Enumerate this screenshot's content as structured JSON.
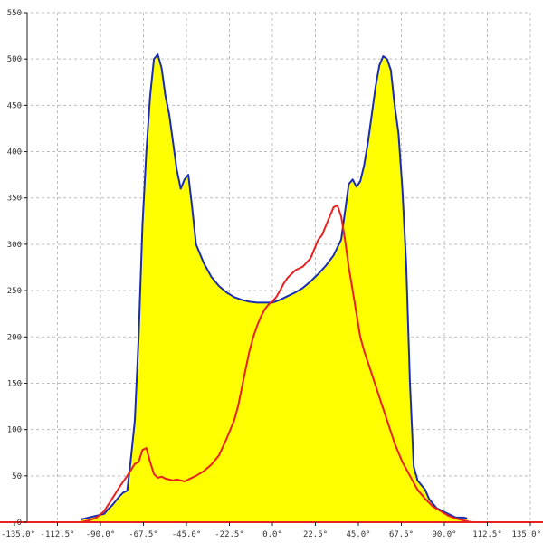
{
  "chart_data": {
    "type": "area",
    "title": "",
    "xlabel": "",
    "ylabel": "",
    "xlim": [
      -135,
      135
    ],
    "ylim": [
      0,
      550
    ],
    "grid": true,
    "legend": "none",
    "x_ticks": [
      {
        "value": -135,
        "label": "-135.0°"
      },
      {
        "value": -112.5,
        "label": "-112.5°"
      },
      {
        "value": -90,
        "label": "-90.0°"
      },
      {
        "value": -67.5,
        "label": "-67.5°"
      },
      {
        "value": -45,
        "label": "-45.0°"
      },
      {
        "value": -22.5,
        "label": "-22.5°"
      },
      {
        "value": 0,
        "label": "0.0°"
      },
      {
        "value": 22.5,
        "label": "22.5°"
      },
      {
        "value": 45,
        "label": "45.0°"
      },
      {
        "value": 67.5,
        "label": "67.5°"
      },
      {
        "value": 90,
        "label": "90.0°"
      },
      {
        "value": 112.5,
        "label": "112.5°"
      },
      {
        "value": 135,
        "label": "135.0°"
      }
    ],
    "y_ticks": [
      {
        "value": 0,
        "label": "0"
      },
      {
        "value": 50,
        "label": "50"
      },
      {
        "value": 100,
        "label": "100"
      },
      {
        "value": 150,
        "label": "150"
      },
      {
        "value": 200,
        "label": "200"
      },
      {
        "value": 250,
        "label": "250"
      },
      {
        "value": 300,
        "label": "300"
      },
      {
        "value": 350,
        "label": "350"
      },
      {
        "value": 400,
        "label": "400"
      },
      {
        "value": 450,
        "label": "450"
      },
      {
        "value": 500,
        "label": "500"
      },
      {
        "value": 550,
        "label": "550"
      }
    ],
    "series": [
      {
        "color": "#1a2db0",
        "fill": "#ffff00",
        "x": [
          -100,
          -96,
          -92,
          -88,
          -86,
          -84,
          -82,
          -80,
          -78,
          -76,
          -74,
          -72,
          -70,
          -68,
          -66,
          -64,
          -62,
          -60,
          -58,
          -56,
          -54,
          -52,
          -50,
          -48,
          -46,
          -44,
          -42,
          -40,
          -36,
          -32,
          -28,
          -24,
          -20,
          -16,
          -12,
          -8,
          -4,
          0,
          4,
          8,
          12,
          16,
          20,
          24,
          28,
          32,
          36,
          38,
          40,
          42,
          44,
          46,
          48,
          50,
          52,
          54,
          56,
          58,
          60,
          62,
          64,
          66,
          68,
          70,
          72,
          74,
          76,
          78,
          80,
          82,
          84,
          86,
          88,
          90,
          92,
          94,
          96,
          98,
          100,
          102
        ],
        "y": [
          3,
          5,
          7,
          9,
          14,
          18,
          23,
          28,
          32,
          34,
          70,
          110,
          200,
          320,
          400,
          460,
          500,
          505,
          490,
          460,
          440,
          410,
          380,
          360,
          370,
          375,
          340,
          300,
          280,
          265,
          255,
          248,
          243,
          240,
          238,
          237,
          237,
          237,
          240,
          244,
          248,
          253,
          260,
          268,
          277,
          288,
          305,
          335,
          365,
          370,
          362,
          368,
          385,
          410,
          440,
          470,
          493,
          503,
          500,
          488,
          450,
          420,
          360,
          280,
          150,
          60,
          45,
          40,
          35,
          25,
          20,
          15,
          13,
          11,
          9,
          7,
          5,
          5,
          5,
          4
        ]
      },
      {
        "color": "#e8201e",
        "fill": "none",
        "x": [
          -100,
          -96,
          -92,
          -88,
          -84,
          -80,
          -76,
          -72,
          -70,
          -68,
          -66,
          -64,
          -62,
          -60,
          -58,
          -56,
          -52,
          -50,
          -48,
          -46,
          -44,
          -40,
          -36,
          -32,
          -28,
          -24,
          -20,
          -18,
          -16,
          -14,
          -12,
          -10,
          -8,
          -6,
          -4,
          -2,
          0,
          2,
          4,
          6,
          8,
          12,
          16,
          20,
          24,
          26,
          28,
          30,
          32,
          34,
          36,
          38,
          40,
          42,
          44,
          46,
          48,
          52,
          56,
          60,
          64,
          68,
          72,
          76,
          80,
          84,
          88,
          92,
          96,
          100,
          104
        ],
        "y": [
          0,
          2,
          5,
          12,
          25,
          38,
          50,
          63,
          65,
          78,
          80,
          65,
          52,
          48,
          49,
          47,
          45,
          46,
          45,
          44,
          46,
          50,
          55,
          62,
          72,
          90,
          110,
          125,
          145,
          165,
          185,
          200,
          212,
          222,
          230,
          235,
          238,
          243,
          250,
          258,
          264,
          272,
          276,
          285,
          305,
          310,
          320,
          330,
          340,
          342,
          330,
          305,
          275,
          250,
          225,
          200,
          185,
          160,
          135,
          110,
          85,
          65,
          50,
          35,
          25,
          17,
          12,
          7,
          4,
          2,
          0
        ]
      }
    ],
    "baseline_color": "#e8201e"
  }
}
